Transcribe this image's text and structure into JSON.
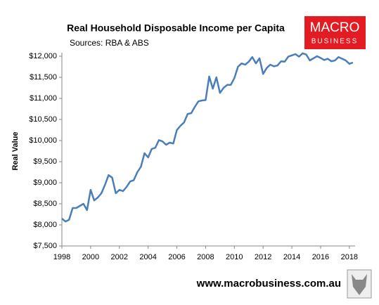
{
  "chart_data": {
    "type": "line",
    "title": "Real Household Disposable Income per Capita",
    "subtitle": "Sources: RBA & ABS",
    "y_label": "Real Value",
    "logo": [
      "MACRO",
      "BUSINESS"
    ],
    "footer": "www.macrobusiness.com.au",
    "x": [
      1998,
      1998.25,
      1998.5,
      1998.75,
      1999,
      1999.25,
      1999.5,
      1999.75,
      2000,
      2000.25,
      2000.5,
      2000.75,
      2001,
      2001.25,
      2001.5,
      2001.75,
      2002,
      2002.25,
      2002.5,
      2002.75,
      2003,
      2003.25,
      2003.5,
      2003.75,
      2004,
      2004.25,
      2004.5,
      2004.75,
      2005,
      2005.25,
      2005.5,
      2005.75,
      2006,
      2006.25,
      2006.5,
      2006.75,
      2007,
      2007.25,
      2007.5,
      2007.75,
      2008,
      2008.25,
      2008.5,
      2008.75,
      2009,
      2009.25,
      2009.5,
      2009.75,
      2010,
      2010.25,
      2010.5,
      2010.75,
      2011,
      2011.25,
      2011.5,
      2011.75,
      2012,
      2012.25,
      2012.5,
      2012.75,
      2013,
      2013.25,
      2013.5,
      2013.75,
      2014,
      2014.25,
      2014.5,
      2014.75,
      2015,
      2015.25,
      2015.5,
      2015.75,
      2016,
      2016.25,
      2016.5,
      2016.75,
      2017,
      2017.25,
      2017.5,
      2017.75,
      2018,
      2018.25
    ],
    "series": [
      {
        "name": "Real Value",
        "color": "#4a7ebb",
        "values": [
          8150,
          8080,
          8120,
          8400,
          8400,
          8450,
          8500,
          8350,
          8830,
          8580,
          8650,
          8750,
          8950,
          9180,
          9120,
          8750,
          8830,
          8800,
          8900,
          9030,
          9060,
          9250,
          9380,
          9700,
          9600,
          9800,
          9830,
          10010,
          9980,
          9900,
          9950,
          9930,
          10250,
          10350,
          10430,
          10630,
          10650,
          10800,
          10930,
          10950,
          10960,
          11520,
          11230,
          11500,
          11130,
          11250,
          11320,
          11320,
          11480,
          11750,
          11830,
          11800,
          11870,
          11980,
          11830,
          11950,
          11580,
          11720,
          11800,
          11760,
          11780,
          11880,
          11870,
          11990,
          12020,
          12050,
          11990,
          12070,
          12040,
          11900,
          11950,
          12000,
          11960,
          11910,
          11940,
          11880,
          11900,
          11980,
          11940,
          11900,
          11820,
          11850
        ]
      }
    ],
    "xlim": [
      1998,
      2018.4
    ],
    "xticks": [
      1998,
      2000,
      2002,
      2004,
      2006,
      2008,
      2010,
      2012,
      2014,
      2016,
      2018
    ],
    "ylim": [
      7500,
      12000
    ],
    "yticks": [
      {
        "value": 7500,
        "label": "$7,500"
      },
      {
        "value": 8000,
        "label": "$8,000"
      },
      {
        "value": 8500,
        "label": "$8,500"
      },
      {
        "value": 9000,
        "label": "$9,000"
      },
      {
        "value": 9500,
        "label": "$9,500"
      },
      {
        "value": 10000,
        "label": "$10,000"
      },
      {
        "value": 10500,
        "label": "$10,500"
      },
      {
        "value": 11000,
        "label": "$11,000"
      },
      {
        "value": 11500,
        "label": "$11,500"
      },
      {
        "value": 12000,
        "label": "$12,000"
      }
    ],
    "grid": false
  }
}
